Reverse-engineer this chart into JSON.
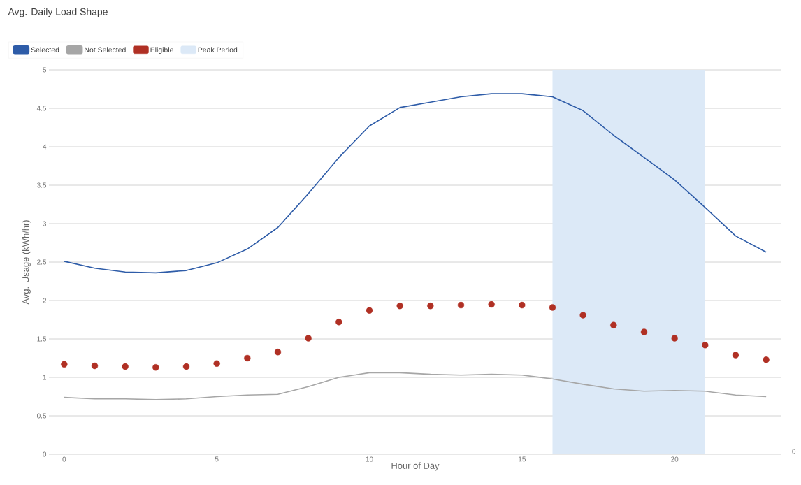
{
  "chart_data": {
    "type": "line",
    "title": "Avg. Daily Load Shape",
    "xlabel": "Hour of Day",
    "ylabel": "Avg. Usage (kWh/hr)",
    "x": [
      0,
      1,
      2,
      3,
      4,
      5,
      6,
      7,
      8,
      9,
      10,
      11,
      12,
      13,
      14,
      15,
      16,
      17,
      18,
      19,
      20,
      21,
      22,
      23
    ],
    "xlim": [
      -0.5,
      23.5
    ],
    "xticks": [
      0,
      5,
      10,
      15,
      20
    ],
    "ylim": [
      0,
      5
    ],
    "yticks": [
      0,
      0.5,
      1,
      1.5,
      2,
      2.5,
      3,
      3.5,
      4,
      4.5,
      5
    ],
    "grid": "y",
    "legend": "top left",
    "line_style": "solid",
    "bands": [
      {
        "axis": "x",
        "from": 16,
        "to": 21,
        "label": "Peak Period",
        "color": "#dce9f7"
      }
    ],
    "annotations": [
      "0"
    ],
    "series": [
      {
        "name": "Selected",
        "color": "#2e5ca8",
        "values": [
          2.51,
          2.42,
          2.37,
          2.36,
          2.39,
          2.49,
          2.67,
          2.95,
          3.39,
          3.86,
          4.27,
          4.51,
          4.58,
          4.65,
          4.69,
          4.69,
          4.65,
          4.47,
          4.15,
          3.86,
          3.57,
          3.21,
          2.84,
          2.63
        ]
      },
      {
        "name": "Not Selected",
        "color": "#a6a6a6",
        "values": [
          0.74,
          0.72,
          0.72,
          0.71,
          0.72,
          0.75,
          0.77,
          0.78,
          0.88,
          1.0,
          1.06,
          1.06,
          1.04,
          1.03,
          1.04,
          1.03,
          0.98,
          0.91,
          0.85,
          0.82,
          0.83,
          0.82,
          0.77,
          0.75
        ]
      },
      {
        "name": "Eligible",
        "type": "scatter",
        "marker": "circle",
        "color": "#b03024",
        "values": [
          1.17,
          1.15,
          1.14,
          1.13,
          1.14,
          1.18,
          1.25,
          1.33,
          1.51,
          1.72,
          1.87,
          1.93,
          1.93,
          1.94,
          1.95,
          1.94,
          1.91,
          1.81,
          1.68,
          1.59,
          1.51,
          1.42,
          1.29,
          1.23
        ]
      }
    ]
  }
}
